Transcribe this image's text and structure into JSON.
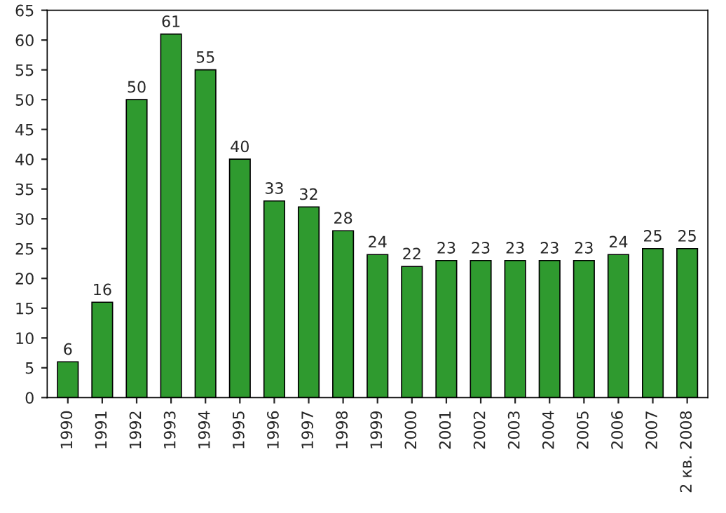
{
  "chart_data": {
    "type": "bar",
    "categories": [
      "1990",
      "1991",
      "1992",
      "1993",
      "1994",
      "1995",
      "1996",
      "1997",
      "1998",
      "1999",
      "2000",
      "2001",
      "2002",
      "2003",
      "2004",
      "2005",
      "2006",
      "2007",
      "2 кв. 2008"
    ],
    "values": [
      6,
      16,
      50,
      61,
      55,
      40,
      33,
      32,
      28,
      24,
      22,
      23,
      23,
      23,
      23,
      23,
      24,
      25,
      25
    ],
    "color": "#2f9a2f",
    "ylim": [
      0,
      65
    ],
    "yticks": [
      0,
      5,
      10,
      15,
      20,
      25,
      30,
      35,
      40,
      45,
      50,
      55,
      60,
      65
    ],
    "data_labels": true,
    "grid": false
  }
}
